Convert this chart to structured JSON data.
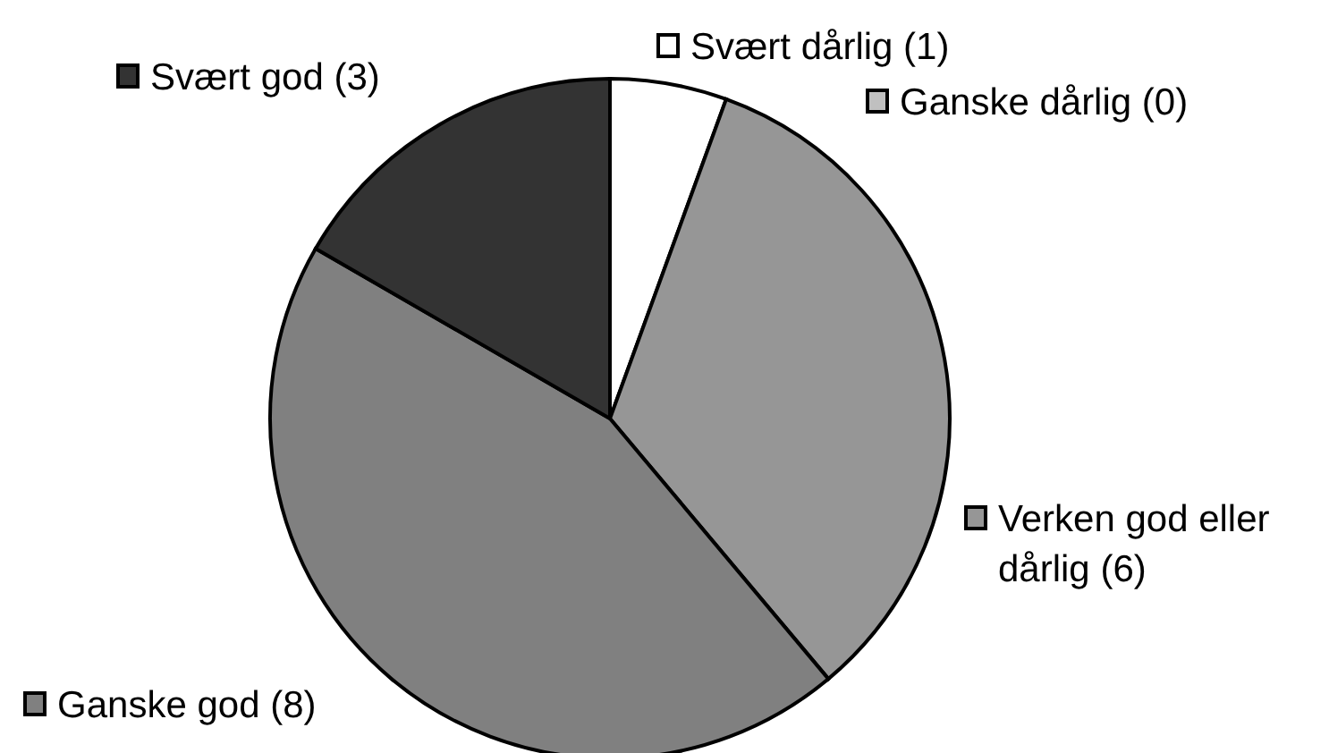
{
  "chart_data": {
    "type": "pie",
    "categories": [
      "Svært dårlig (1)",
      "Ganske dårlig (0)",
      "Verken god eller dårlig (6)",
      "Ganske god (8)",
      "Svært god (3)"
    ],
    "values": [
      1,
      0,
      6,
      8,
      3
    ],
    "colors": [
      "#ffffff",
      "#c0c0c0",
      "#969696",
      "#808080",
      "#333333"
    ],
    "legend": "right"
  }
}
